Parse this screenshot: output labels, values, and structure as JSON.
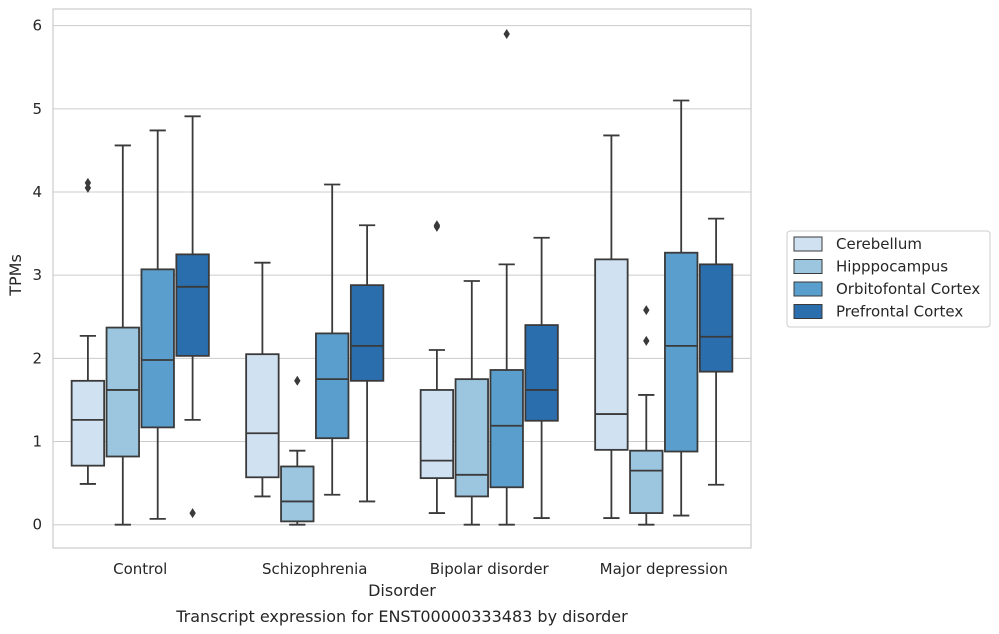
{
  "chart_data": {
    "type": "boxplot",
    "xlabel": "Disorder",
    "ylabel": "TPMs",
    "caption": "Transcript expression for ENST00000333483 by disorder",
    "ylim": [
      -0.28,
      6.2
    ],
    "yticks": [
      0,
      1,
      2,
      3,
      4,
      5,
      6
    ],
    "grid": "horizontal",
    "legend_position": "right",
    "categories": [
      "Control",
      "Schizophrenia",
      "Bipolar disorder",
      "Major depression"
    ],
    "series": [
      {
        "name": "Cerebellum",
        "color": "#d0e1f1",
        "boxes": [
          {
            "whisker_low": 0.49,
            "q1": 0.71,
            "median": 1.26,
            "q3": 1.73,
            "whisker_high": 2.27,
            "outliers": [
              4.05,
              4.11
            ]
          },
          {
            "whisker_low": 0.34,
            "q1": 0.57,
            "median": 1.1,
            "q3": 2.05,
            "whisker_high": 3.15,
            "outliers": []
          },
          {
            "whisker_low": 0.14,
            "q1": 0.56,
            "median": 0.77,
            "q3": 1.62,
            "whisker_high": 2.1,
            "outliers": [
              3.58,
              3.6
            ]
          },
          {
            "whisker_low": 0.08,
            "q1": 0.9,
            "median": 1.33,
            "q3": 3.19,
            "whisker_high": 4.68,
            "outliers": []
          }
        ]
      },
      {
        "name": "Hipppocampus",
        "color": "#9cc6e0",
        "boxes": [
          {
            "whisker_low": 0.0,
            "q1": 0.82,
            "median": 1.62,
            "q3": 2.37,
            "whisker_high": 4.56,
            "outliers": []
          },
          {
            "whisker_low": 0.0,
            "q1": 0.04,
            "median": 0.28,
            "q3": 0.7,
            "whisker_high": 0.89,
            "outliers": [
              1.73
            ]
          },
          {
            "whisker_low": 0.0,
            "q1": 0.34,
            "median": 0.6,
            "q3": 1.75,
            "whisker_high": 2.93,
            "outliers": []
          },
          {
            "whisker_low": 0.0,
            "q1": 0.14,
            "median": 0.65,
            "q3": 0.89,
            "whisker_high": 1.56,
            "outliers": [
              2.21,
              2.58
            ]
          }
        ]
      },
      {
        "name": "Orbitofontal Cortex",
        "color": "#5a9ecd",
        "boxes": [
          {
            "whisker_low": 0.07,
            "q1": 1.17,
            "median": 1.98,
            "q3": 3.07,
            "whisker_high": 4.74,
            "outliers": []
          },
          {
            "whisker_low": 0.36,
            "q1": 1.04,
            "median": 1.75,
            "q3": 2.3,
            "whisker_high": 4.09,
            "outliers": []
          },
          {
            "whisker_low": 0.0,
            "q1": 0.45,
            "median": 1.19,
            "q3": 1.86,
            "whisker_high": 3.13,
            "outliers": [
              5.9
            ]
          },
          {
            "whisker_low": 0.11,
            "q1": 0.88,
            "median": 2.15,
            "q3": 3.27,
            "whisker_high": 5.1,
            "outliers": []
          }
        ]
      },
      {
        "name": "Prefrontal Cortex",
        "color": "#2b6ead",
        "boxes": [
          {
            "whisker_low": 1.26,
            "q1": 2.03,
            "median": 2.86,
            "q3": 3.25,
            "whisker_high": 4.91,
            "outliers": [
              0.14
            ]
          },
          {
            "whisker_low": 0.28,
            "q1": 1.73,
            "median": 2.15,
            "q3": 2.88,
            "whisker_high": 3.6,
            "outliers": []
          },
          {
            "whisker_low": 0.08,
            "q1": 1.25,
            "median": 1.62,
            "q3": 2.4,
            "whisker_high": 3.45,
            "outliers": []
          },
          {
            "whisker_low": 0.48,
            "q1": 1.84,
            "median": 2.26,
            "q3": 3.13,
            "whisker_high": 3.68,
            "outliers": []
          }
        ]
      }
    ]
  }
}
